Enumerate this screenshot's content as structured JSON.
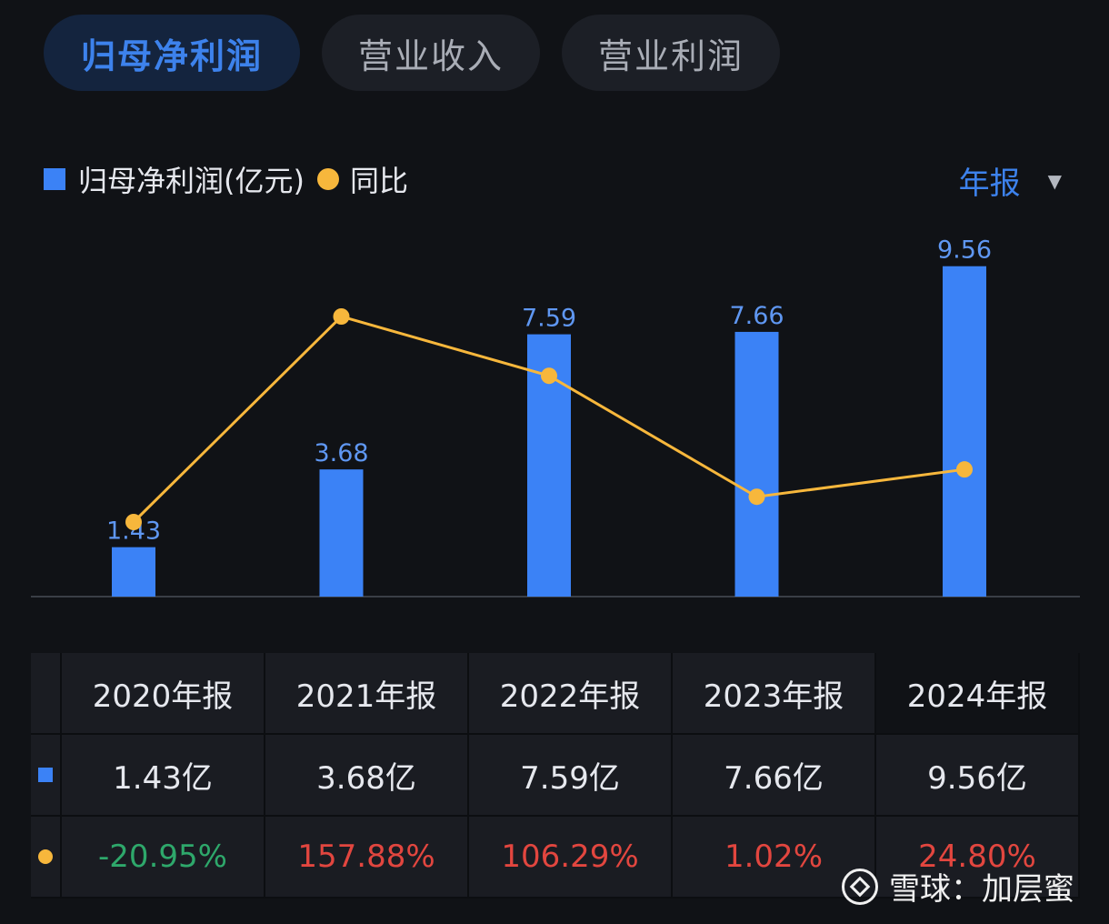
{
  "tabs": [
    {
      "label": "归母净利润",
      "active": true
    },
    {
      "label": "营业收入",
      "active": false
    },
    {
      "label": "营业利润",
      "active": false
    }
  ],
  "legend": {
    "bar_label": "归母净利润(亿元)",
    "line_label": "同比"
  },
  "period_selector": {
    "label": "年报"
  },
  "colors": {
    "bar": "#3b82f6",
    "line": "#f7b73c",
    "negative": "#2ea86b",
    "positive": "#e2463f",
    "accent": "#3d82ec"
  },
  "chart_data": {
    "type": "bar",
    "categories": [
      "2020年报",
      "2021年报",
      "2022年报",
      "2023年报",
      "2024年报"
    ],
    "series": [
      {
        "name": "归母净利润(亿元)",
        "type": "bar",
        "values": [
          1.43,
          3.68,
          7.59,
          7.66,
          9.56
        ],
        "data_labels": [
          "1.43",
          "3.68",
          "7.59",
          "7.66",
          "9.56"
        ]
      },
      {
        "name": "同比",
        "type": "line",
        "values": [
          -20.95,
          157.88,
          106.29,
          1.02,
          24.8
        ]
      }
    ],
    "grid": false,
    "legend_position": "top-left"
  },
  "table": {
    "headers": [
      "2020年报",
      "2021年报",
      "2022年报",
      "2023年报",
      "2024年报"
    ],
    "profit_row": [
      "1.43亿",
      "3.68亿",
      "7.59亿",
      "7.66亿",
      "9.56亿"
    ],
    "yoy_row": [
      "-20.95%",
      "157.88%",
      "106.29%",
      "1.02%",
      "24.80%"
    ]
  },
  "watermark": {
    "text": "雪球：加层蜜"
  }
}
